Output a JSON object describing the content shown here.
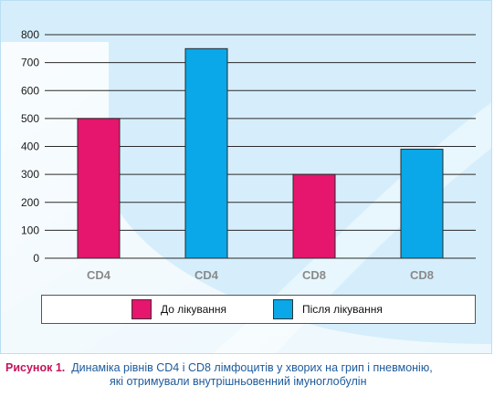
{
  "chart_data": {
    "type": "bar",
    "categories": [
      "CD4",
      "CD4",
      "CD8",
      "CD8"
    ],
    "values": [
      500,
      750,
      300,
      390
    ],
    "series_index": [
      0,
      1,
      0,
      1
    ],
    "series": [
      {
        "name": "До лікування",
        "color": "#e6156e"
      },
      {
        "name": "Після лікування",
        "color": "#0aa8e8"
      }
    ],
    "ylim": [
      0,
      800
    ],
    "yticks": [
      0,
      100,
      200,
      300,
      400,
      500,
      600,
      700,
      800
    ],
    "grid": true,
    "legend_position": "bottom"
  },
  "caption": {
    "prefix": "Рисунок 1.",
    "line1": "Динаміка рівнів CD4 і CD8 лімфоцитів у хворих на грип і пневмонію,",
    "line2": "які отримували внутрішньовенний імуноглобулін"
  }
}
